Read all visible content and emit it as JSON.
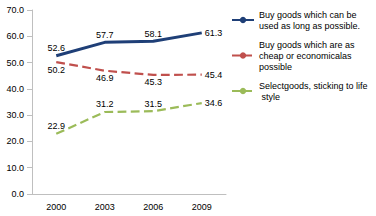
{
  "chart_data": {
    "type": "line",
    "categories": [
      "2000",
      "2003",
      "2006",
      "2009"
    ],
    "series": [
      {
        "name": "Buy goods which can be used as long as possible.",
        "color": "#1f3f77",
        "line_style": "solid",
        "values": [
          52.6,
          57.7,
          58.1,
          61.3
        ]
      },
      {
        "name": "Buy goods which are as cheap or economicalas possible",
        "color": "#c0504d",
        "line_style": "dashed",
        "values": [
          50.2,
          46.9,
          45.3,
          45.4
        ]
      },
      {
        "name": "Selectgoods, sticking to life style",
        "color": "#9bbb59",
        "line_style": "dashed",
        "values": [
          22.9,
          31.2,
          31.5,
          34.6
        ]
      }
    ],
    "ylim": [
      0,
      70
    ],
    "yticks": [
      {
        "value": 0,
        "label": "0.0"
      },
      {
        "value": 10,
        "label": "10.0"
      },
      {
        "value": 20,
        "label": "20.0"
      },
      {
        "value": 30,
        "label": "30.0"
      },
      {
        "value": 40,
        "label": "40.0"
      },
      {
        "value": 50,
        "label": "50.0"
      },
      {
        "value": 60,
        "label": "60.0"
      },
      {
        "value": 70,
        "label": "70.0"
      }
    ],
    "grid": false,
    "legend": "right",
    "data_labels": true
  }
}
